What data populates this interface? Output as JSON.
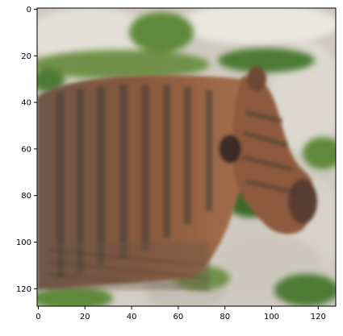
{
  "figure": {
    "image_description_icon": "generated-zebra-like-animal-photo",
    "axis_color": "#000000",
    "x_ticks": [
      "0",
      "20",
      "40",
      "60",
      "80",
      "100",
      "120"
    ],
    "y_ticks": [
      "0",
      "20",
      "40",
      "60",
      "80",
      "100",
      "120"
    ],
    "x_range": [
      0,
      128
    ],
    "y_range": [
      0,
      128
    ],
    "palette": {
      "rock": "#d9d6ce",
      "rock_shadow": "#a9a59b",
      "grass": "#5f8a3a",
      "grass_dark": "#3e6a2a",
      "fur": "#8a5a3e",
      "fur_light": "#a8714d",
      "stripe": "#3d3a36",
      "eye": "#1e1b1a"
    }
  }
}
